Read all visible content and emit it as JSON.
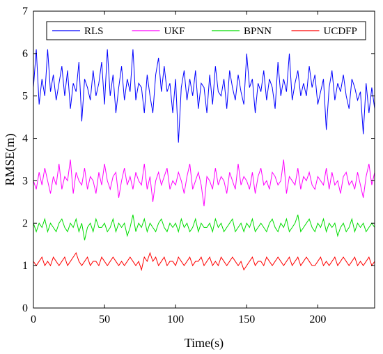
{
  "chart_data": {
    "type": "line",
    "title": "",
    "xlabel": "Time(s)",
    "ylabel": "RMSE(m)",
    "xlim": [
      0,
      240
    ],
    "ylim": [
      0,
      7
    ],
    "x_ticks": [
      0,
      50,
      100,
      150,
      200
    ],
    "y_ticks": [
      0,
      1,
      2,
      3,
      4,
      5,
      6,
      7
    ],
    "grid": false,
    "legend_position": "top",
    "legend_orientation": "horizontal",
    "x": [
      0,
      2,
      4,
      6,
      8,
      10,
      12,
      14,
      16,
      18,
      20,
      22,
      24,
      26,
      28,
      30,
      32,
      34,
      36,
      38,
      40,
      42,
      44,
      46,
      48,
      50,
      52,
      54,
      56,
      58,
      60,
      62,
      64,
      66,
      68,
      70,
      72,
      74,
      76,
      78,
      80,
      82,
      84,
      86,
      88,
      90,
      92,
      94,
      96,
      98,
      100,
      102,
      104,
      106,
      108,
      110,
      112,
      114,
      116,
      118,
      120,
      122,
      124,
      126,
      128,
      130,
      132,
      134,
      136,
      138,
      140,
      142,
      144,
      146,
      148,
      150,
      152,
      154,
      156,
      158,
      160,
      162,
      164,
      166,
      168,
      170,
      172,
      174,
      176,
      178,
      180,
      182,
      184,
      186,
      188,
      190,
      192,
      194,
      196,
      198,
      200,
      202,
      204,
      206,
      208,
      210,
      212,
      214,
      216,
      218,
      220,
      222,
      224,
      226,
      228,
      230,
      232,
      234,
      236,
      238,
      240
    ],
    "series": [
      {
        "name": "RLS",
        "color": "#0000ff",
        "values": [
          5.2,
          6.1,
          4.8,
          5.4,
          5.0,
          6.1,
          5.1,
          5.5,
          4.9,
          5.3,
          5.7,
          5.0,
          5.6,
          4.7,
          5.3,
          5.1,
          5.8,
          4.4,
          5.4,
          5.2,
          4.9,
          5.6,
          5.0,
          5.3,
          5.8,
          4.8,
          6.1,
          5.0,
          5.5,
          4.6,
          5.2,
          5.7,
          4.9,
          5.4,
          5.1,
          6.1,
          4.9,
          5.3,
          5.2,
          4.6,
          5.5,
          5.0,
          4.6,
          5.5,
          5.9,
          5.1,
          5.7,
          5.1,
          5.3,
          4.6,
          5.4,
          3.9,
          5.2,
          5.6,
          4.9,
          5.4,
          5.0,
          5.6,
          4.7,
          5.3,
          5.2,
          4.6,
          5.5,
          4.8,
          5.7,
          5.1,
          5.0,
          5.4,
          4.7,
          5.6,
          5.2,
          4.9,
          5.5,
          5.1,
          4.8,
          6.0,
          5.2,
          5.4,
          4.6,
          5.3,
          5.1,
          5.6,
          4.9,
          5.4,
          5.2,
          4.7,
          5.8,
          5.0,
          5.4,
          5.1,
          6.0,
          4.9,
          5.3,
          5.6,
          5.0,
          5.3,
          5.0,
          5.7,
          5.2,
          5.5,
          4.8,
          5.1,
          5.4,
          4.2,
          5.2,
          5.6,
          4.9,
          5.3,
          5.1,
          5.5,
          5.0,
          4.7,
          5.4,
          5.2,
          4.9,
          5.1,
          4.1,
          5.3,
          4.6,
          5.2,
          4.7
        ]
      },
      {
        "name": "UKF",
        "color": "#ff00ff",
        "values": [
          3.0,
          2.8,
          3.2,
          2.9,
          3.3,
          3.0,
          2.7,
          3.1,
          2.9,
          3.4,
          2.8,
          3.1,
          3.0,
          3.5,
          2.7,
          3.2,
          3.0,
          2.9,
          3.3,
          2.8,
          3.1,
          3.0,
          2.7,
          3.2,
          2.9,
          3.4,
          3.0,
          2.8,
          3.1,
          3.2,
          2.6,
          3.0,
          3.3,
          2.9,
          3.1,
          2.8,
          3.2,
          3.0,
          2.9,
          3.4,
          2.8,
          3.1,
          2.5,
          3.0,
          3.2,
          2.9,
          3.1,
          3.3,
          2.8,
          3.0,
          2.9,
          3.2,
          3.0,
          2.7,
          3.1,
          3.4,
          2.8,
          3.0,
          3.2,
          2.9,
          2.4,
          3.1,
          3.0,
          2.8,
          3.3,
          2.9,
          3.1,
          3.0,
          2.7,
          3.2,
          3.0,
          2.8,
          3.4,
          2.9,
          3.1,
          3.0,
          2.8,
          3.2,
          2.7,
          3.1,
          3.3,
          2.9,
          3.0,
          2.8,
          3.2,
          3.1,
          2.9,
          3.0,
          3.5,
          2.7,
          3.1,
          3.0,
          2.9,
          3.3,
          2.8,
          3.1,
          3.0,
          3.2,
          2.9,
          2.8,
          3.1,
          3.0,
          2.9,
          3.3,
          2.8,
          3.2,
          2.9,
          3.0,
          2.7,
          3.1,
          3.2,
          2.9,
          3.0,
          2.8,
          3.2,
          2.9,
          2.6,
          3.1,
          3.4,
          2.9,
          3.2
        ]
      },
      {
        "name": "BPNN",
        "color": "#00dd00",
        "values": [
          2.0,
          1.8,
          2.0,
          1.9,
          2.1,
          1.8,
          2.0,
          1.9,
          1.8,
          2.0,
          2.1,
          1.9,
          1.8,
          2.0,
          1.9,
          2.1,
          1.8,
          2.0,
          1.6,
          1.9,
          2.0,
          1.8,
          2.1,
          1.9,
          1.9,
          2.0,
          1.8,
          1.9,
          2.1,
          1.8,
          2.0,
          1.9,
          2.0,
          1.7,
          1.9,
          2.2,
          1.8,
          2.0,
          1.9,
          2.1,
          1.8,
          2.0,
          1.9,
          1.8,
          2.0,
          2.1,
          1.9,
          1.8,
          2.0,
          1.9,
          2.0,
          1.8,
          2.1,
          1.9,
          2.0,
          1.8,
          1.9,
          2.1,
          1.8,
          2.0,
          1.9,
          1.9,
          2.0,
          1.8,
          2.1,
          1.9,
          2.0,
          1.8,
          1.9,
          2.0,
          2.1,
          1.8,
          1.9,
          2.0,
          1.8,
          2.0,
          1.9,
          2.1,
          1.8,
          1.9,
          2.0,
          1.9,
          1.8,
          2.0,
          2.1,
          1.9,
          1.8,
          2.0,
          1.9,
          2.1,
          1.8,
          1.9,
          2.0,
          2.2,
          1.8,
          1.9,
          2.0,
          2.1,
          1.9,
          1.8,
          2.0,
          1.9,
          2.1,
          1.8,
          2.0,
          1.9,
          2.0,
          1.7,
          1.9,
          2.0,
          1.8,
          1.9,
          2.1,
          1.8,
          2.0,
          1.9,
          2.0,
          1.8,
          1.9,
          2.0,
          1.9
        ]
      },
      {
        "name": "UCDFP",
        "color": "#ff0000",
        "values": [
          1.1,
          1.0,
          1.1,
          1.2,
          1.0,
          1.1,
          1.0,
          1.2,
          1.1,
          1.0,
          1.1,
          1.2,
          1.0,
          1.1,
          1.2,
          1.3,
          1.1,
          1.0,
          1.1,
          1.2,
          1.0,
          1.1,
          1.1,
          1.0,
          1.2,
          1.1,
          1.0,
          1.1,
          1.2,
          1.1,
          1.0,
          1.1,
          1.0,
          1.1,
          1.2,
          1.1,
          1.0,
          1.1,
          0.9,
          1.2,
          1.1,
          1.3,
          1.1,
          1.2,
          1.0,
          1.1,
          1.2,
          1.0,
          1.1,
          1.1,
          1.0,
          1.2,
          1.1,
          1.0,
          1.1,
          1.2,
          1.0,
          1.1,
          1.1,
          1.2,
          1.0,
          1.1,
          1.2,
          1.0,
          1.1,
          1.0,
          1.2,
          1.1,
          1.0,
          1.1,
          1.2,
          1.1,
          1.0,
          1.1,
          0.9,
          1.0,
          1.1,
          1.2,
          1.0,
          1.1,
          1.1,
          1.0,
          1.2,
          1.1,
          1.0,
          1.1,
          1.2,
          1.1,
          1.0,
          1.1,
          1.2,
          1.0,
          1.1,
          1.2,
          1.0,
          1.1,
          1.2,
          1.1,
          1.0,
          1.0,
          1.1,
          1.2,
          1.0,
          1.1,
          1.0,
          1.1,
          1.2,
          1.0,
          1.1,
          1.2,
          1.1,
          1.0,
          1.1,
          1.2,
          1.0,
          1.1,
          1.0,
          1.1,
          1.2,
          1.0,
          1.1
        ]
      }
    ]
  }
}
